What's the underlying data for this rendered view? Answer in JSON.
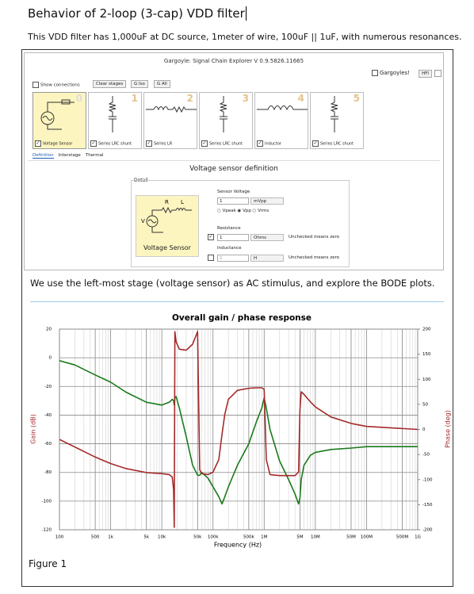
{
  "doc": {
    "title": "Behavior of 2-loop (3-cap) VDD filter",
    "intro": "This VDD filter has 1,000uF at DC source, 1meter of wire, 100uF || 1uF, with numerous resonances.",
    "body2": "We use the left-most stage (voltage sensor) as AC stimulus, and explore the BODE plots.",
    "caption": "Figure 1"
  },
  "app": {
    "window_title": "Gargoyle: Signal Chain Explorer V 0.9.5826.11665",
    "gargoyles": "Gargoyles!",
    "hfi": "HFI",
    "show_connections": "Show connections",
    "buttons": [
      "Clear stages",
      "G Iso",
      "G All"
    ],
    "stages": [
      {
        "number": "0",
        "label": "Voltage Sensor"
      },
      {
        "number": "1",
        "label": "Series LRC shunt"
      },
      {
        "number": "2",
        "label": "Series LR"
      },
      {
        "number": "3",
        "label": "Series LRC shunt"
      },
      {
        "number": "4",
        "label": "Inductor"
      },
      {
        "number": "5",
        "label": "Series LRC shunt"
      }
    ],
    "tabs": [
      "Definition",
      "Interstage",
      "Thermal"
    ],
    "panel_title": "Voltage sensor definition",
    "detail": "Detail",
    "schematic": {
      "r": "R",
      "l": "L",
      "v": "V"
    },
    "sensor_name": "Voltage Sensor",
    "sensor_voltage": {
      "label": "Sensor Voltage",
      "value": "1",
      "unit": "mVpp"
    },
    "radios": [
      "Vpeak",
      "Vpp",
      "Vrms"
    ],
    "resistance": {
      "label": "Resistance",
      "value": "1",
      "unit": "Ohms",
      "note": "Unchecked means zero"
    },
    "inductance": {
      "label": "Inductance",
      "value": "0",
      "unit": "H",
      "note": "Unchecked means zero"
    }
  },
  "chart_data": {
    "type": "line",
    "title": "Overall gain / phase response",
    "x_label": "Frequency (Hz)",
    "y_label": "Gain (dB)",
    "y2_label": "Phase (deg)",
    "x_scale": "log",
    "grid": true,
    "x": [
      100,
      200,
      500,
      1000,
      2000,
      5000,
      10000,
      14000,
      16000,
      17000,
      17500,
      18000,
      19000,
      22000,
      30000,
      40000,
      50000,
      55000,
      60000,
      80000,
      100000,
      130000,
      150000,
      170000,
      200000,
      300000,
      500000,
      700000,
      900000,
      1000000,
      1100000,
      1300000,
      2000000,
      3000000,
      4000000,
      4700000,
      5000000,
      5300000,
      6000000,
      8000000,
      10000000,
      20000000,
      50000000,
      100000000,
      1000000000
    ],
    "series": [
      {
        "color": "#1a7a1a",
        "axis": "y",
        "values": [
          -2,
          -5,
          -12,
          -17,
          -24,
          -31,
          -33,
          -31,
          -29,
          -30,
          -33,
          -28,
          -27,
          -35,
          -55,
          -75,
          -82,
          -82,
          -80,
          -84,
          -90,
          -97,
          -102,
          -97,
          -90,
          -75,
          -60,
          -45,
          -35,
          -28,
          -35,
          -50,
          -72,
          -85,
          -95,
          -102,
          -98,
          -85,
          -75,
          -68,
          -66,
          -64,
          -63,
          -62,
          -62
        ]
      },
      {
        "color": "#a52a2a",
        "axis": "y2",
        "values": [
          -20,
          -35,
          -55,
          -68,
          -78,
          -86,
          -88,
          -90,
          -95,
          -120,
          -195,
          195,
          175,
          160,
          158,
          170,
          195,
          -80,
          -88,
          -90,
          -85,
          -60,
          -10,
          30,
          60,
          78,
          82,
          83,
          83,
          80,
          -60,
          -90,
          -92,
          -92,
          -92,
          -85,
          40,
          75,
          70,
          55,
          45,
          25,
          12,
          6,
          0
        ]
      }
    ],
    "xlim": [
      100,
      1000000000
    ],
    "xticks": [
      100,
      {
        "value": 500,
        "label": "500"
      },
      {
        "value": 1000,
        "label": "1k"
      },
      {
        "value": 5000,
        "label": "5k"
      },
      {
        "value": 10000,
        "label": "10k"
      },
      {
        "value": 50000,
        "label": "50k"
      },
      {
        "value": 100000,
        "label": "100k"
      },
      {
        "value": 500000,
        "label": "500k"
      },
      {
        "value": 1000000,
        "label": "1M"
      },
      {
        "value": 5000000,
        "label": "5M"
      },
      {
        "value": 10000000,
        "label": "10M"
      },
      {
        "value": 50000000,
        "label": "50M"
      },
      {
        "value": 100000000,
        "label": "100M"
      },
      {
        "value": 500000000,
        "label": "500M"
      },
      {
        "value": 1000000000,
        "label": "1G"
      }
    ],
    "ylim": [
      -120,
      20
    ],
    "yticks": [
      -120,
      -100,
      -80,
      -60,
      -40,
      -20,
      0,
      20
    ],
    "y2lim": [
      -200,
      200
    ],
    "y2ticks": [
      -200,
      -150,
      -100,
      -50,
      0,
      50,
      100,
      150,
      200
    ]
  }
}
